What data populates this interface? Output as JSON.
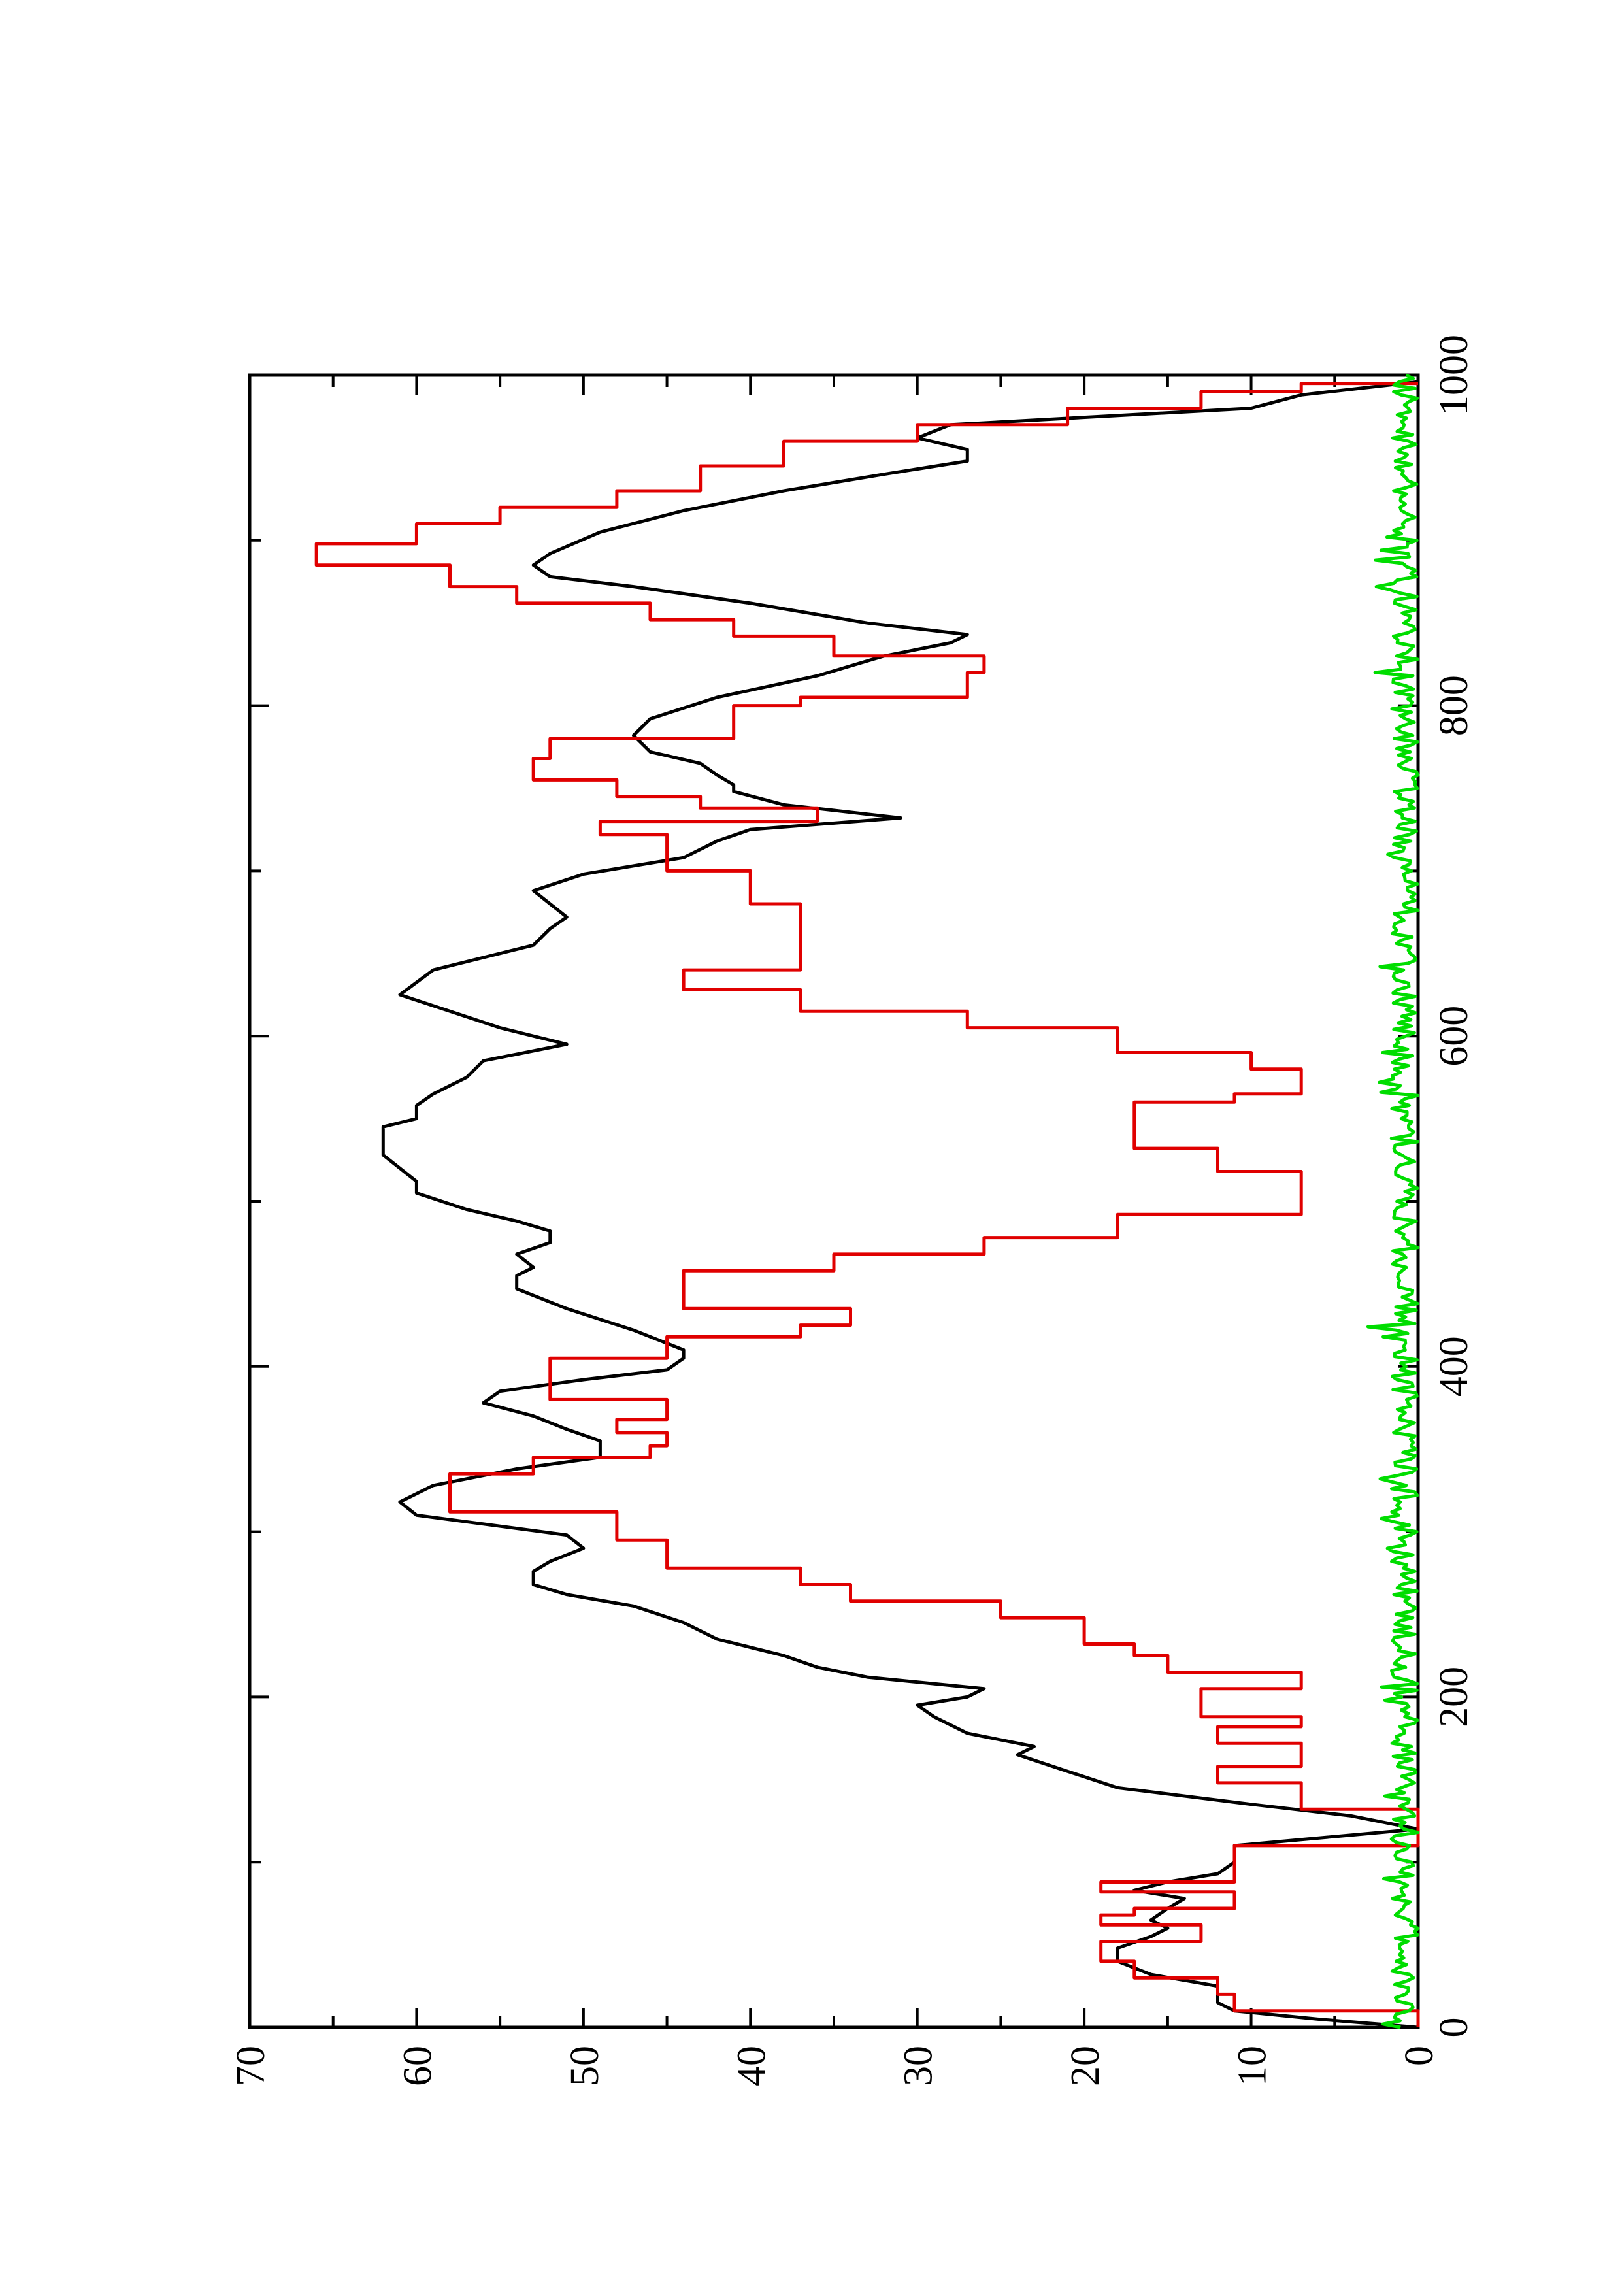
{
  "chart_data": {
    "type": "line",
    "orientation": "rotated-90-ccw",
    "title": "",
    "xlabel": "",
    "ylabel": "",
    "xlim": [
      0,
      1000
    ],
    "ylim": [
      0,
      70
    ],
    "x_ticks": [
      0,
      200,
      400,
      600,
      800,
      1000
    ],
    "x_tick_labels": [
      "0",
      "200",
      "400",
      "600",
      "800",
      "1000"
    ],
    "y_ticks": [
      0,
      10,
      20,
      30,
      40,
      50,
      60,
      70
    ],
    "y_tick_labels": [
      "0",
      "10",
      "20",
      "30",
      "40",
      "50",
      "60",
      "70"
    ],
    "grid": false,
    "legend": "none",
    "series": [
      {
        "color": "#000000",
        "style": "smooth",
        "points": [
          [
            0,
            0
          ],
          [
            5,
            6
          ],
          [
            10,
            11
          ],
          [
            15,
            12
          ],
          [
            25,
            12
          ],
          [
            32,
            16
          ],
          [
            40,
            18
          ],
          [
            48,
            18
          ],
          [
            55,
            16
          ],
          [
            60,
            15
          ],
          [
            65,
            16
          ],
          [
            72,
            15
          ],
          [
            78,
            14
          ],
          [
            83,
            17
          ],
          [
            88,
            15
          ],
          [
            93,
            12
          ],
          [
            100,
            11
          ],
          [
            110,
            11
          ],
          [
            120,
            0
          ],
          [
            128,
            4
          ],
          [
            135,
            10
          ],
          [
            145,
            18
          ],
          [
            155,
            21
          ],
          [
            165,
            24
          ],
          [
            170,
            23
          ],
          [
            178,
            27
          ],
          [
            188,
            29
          ],
          [
            195,
            30
          ],
          [
            200,
            27
          ],
          [
            205,
            26
          ],
          [
            212,
            33
          ],
          [
            218,
            36
          ],
          [
            225,
            38
          ],
          [
            235,
            42
          ],
          [
            245,
            44
          ],
          [
            255,
            47
          ],
          [
            262,
            51
          ],
          [
            268,
            53
          ],
          [
            276,
            53
          ],
          [
            282,
            52
          ],
          [
            290,
            50
          ],
          [
            298,
            51
          ],
          [
            310,
            60
          ],
          [
            318,
            61
          ],
          [
            328,
            59
          ],
          [
            338,
            54
          ],
          [
            345,
            49
          ],
          [
            355,
            49
          ],
          [
            362,
            51
          ],
          [
            370,
            53
          ],
          [
            378,
            56
          ],
          [
            385,
            55
          ],
          [
            392,
            50
          ],
          [
            398,
            45
          ],
          [
            405,
            44
          ],
          [
            410,
            44
          ],
          [
            422,
            47
          ],
          [
            435,
            51
          ],
          [
            447,
            54
          ],
          [
            455,
            54
          ],
          [
            460,
            53
          ],
          [
            468,
            54
          ],
          [
            475,
            52
          ],
          [
            482,
            52
          ],
          [
            488,
            54
          ],
          [
            495,
            57
          ],
          [
            505,
            60
          ],
          [
            512,
            60
          ],
          [
            520,
            61
          ],
          [
            528,
            62
          ],
          [
            535,
            62
          ],
          [
            545,
            62
          ],
          [
            550,
            60
          ],
          [
            558,
            60
          ],
          [
            565,
            59
          ],
          [
            575,
            57
          ],
          [
            585,
            56
          ],
          [
            595,
            51
          ],
          [
            605,
            55
          ],
          [
            615,
            58
          ],
          [
            625,
            61
          ],
          [
            640,
            59
          ],
          [
            655,
            53
          ],
          [
            665,
            52
          ],
          [
            672,
            51
          ],
          [
            680,
            52
          ],
          [
            688,
            53
          ],
          [
            698,
            50
          ],
          [
            708,
            44
          ],
          [
            718,
            42
          ],
          [
            725,
            40
          ],
          [
            732,
            31
          ],
          [
            740,
            38
          ],
          [
            748,
            41
          ],
          [
            752,
            41
          ],
          [
            758,
            42
          ],
          [
            765,
            43
          ],
          [
            772,
            46
          ],
          [
            782,
            47
          ],
          [
            792,
            46
          ],
          [
            805,
            42
          ],
          [
            818,
            36
          ],
          [
            830,
            32
          ],
          [
            838,
            28
          ],
          [
            843,
            27
          ],
          [
            850,
            33
          ],
          [
            862,
            40
          ],
          [
            872,
            47
          ],
          [
            878,
            52
          ],
          [
            885,
            53
          ],
          [
            892,
            52
          ],
          [
            905,
            49
          ],
          [
            918,
            44
          ],
          [
            930,
            38
          ],
          [
            940,
            32
          ],
          [
            948,
            27
          ],
          [
            955,
            27
          ],
          [
            962,
            30
          ],
          [
            970,
            28
          ],
          [
            980,
            10
          ],
          [
            988,
            7
          ],
          [
            996,
            0
          ]
        ]
      },
      {
        "color": "#e00000",
        "style": "step",
        "points": [
          [
            0,
            0
          ],
          [
            10,
            11
          ],
          [
            20,
            12
          ],
          [
            30,
            17
          ],
          [
            40,
            19
          ],
          [
            48,
            19
          ],
          [
            52,
            13
          ],
          [
            58,
            13
          ],
          [
            62,
            19
          ],
          [
            68,
            17
          ],
          [
            72,
            11
          ],
          [
            78,
            11
          ],
          [
            82,
            19
          ],
          [
            88,
            11
          ],
          [
            98,
            11
          ],
          [
            110,
            0
          ],
          [
            122,
            0
          ],
          [
            132,
            7
          ],
          [
            142,
            7
          ],
          [
            148,
            12
          ],
          [
            158,
            7
          ],
          [
            168,
            7
          ],
          [
            172,
            12
          ],
          [
            182,
            7
          ],
          [
            188,
            13
          ],
          [
            198,
            13
          ],
          [
            205,
            7
          ],
          [
            215,
            15
          ],
          [
            225,
            17
          ],
          [
            232,
            20
          ],
          [
            248,
            25
          ],
          [
            258,
            34
          ],
          [
            268,
            37
          ],
          [
            278,
            45
          ],
          [
            288,
            45
          ],
          [
            295,
            48
          ],
          [
            305,
            48
          ],
          [
            312,
            58
          ],
          [
            322,
            58
          ],
          [
            335,
            53
          ],
          [
            345,
            46
          ],
          [
            352,
            45
          ],
          [
            360,
            48
          ],
          [
            368,
            45
          ],
          [
            380,
            52
          ],
          [
            392,
            52
          ],
          [
            405,
            45
          ],
          [
            418,
            37
          ],
          [
            425,
            34
          ],
          [
            435,
            44
          ],
          [
            445,
            44
          ],
          [
            458,
            35
          ],
          [
            468,
            26
          ],
          [
            478,
            18
          ],
          [
            492,
            7
          ],
          [
            502,
            7
          ],
          [
            518,
            12
          ],
          [
            532,
            17
          ],
          [
            548,
            17
          ],
          [
            560,
            11
          ],
          [
            565,
            7
          ],
          [
            570,
            7
          ],
          [
            580,
            10
          ],
          [
            590,
            18
          ],
          [
            605,
            27
          ],
          [
            615,
            37
          ],
          [
            628,
            44
          ],
          [
            640,
            37
          ],
          [
            660,
            37
          ],
          [
            672,
            37
          ],
          [
            680,
            40
          ],
          [
            692,
            40
          ],
          [
            700,
            45
          ],
          [
            715,
            45
          ],
          [
            722,
            49
          ],
          [
            730,
            36
          ],
          [
            738,
            43
          ],
          [
            745,
            48
          ],
          [
            755,
            53
          ],
          [
            768,
            52
          ],
          [
            780,
            41
          ],
          [
            800,
            37
          ],
          [
            805,
            27
          ],
          [
            815,
            27
          ],
          [
            820,
            26
          ],
          [
            830,
            35
          ],
          [
            842,
            41
          ],
          [
            852,
            46
          ],
          [
            862,
            54
          ],
          [
            872,
            58
          ],
          [
            885,
            66
          ],
          [
            898,
            60
          ],
          [
            910,
            55
          ],
          [
            920,
            48
          ],
          [
            930,
            43
          ],
          [
            945,
            38
          ],
          [
            960,
            30
          ],
          [
            970,
            21
          ],
          [
            980,
            13
          ],
          [
            990,
            7
          ],
          [
            995,
            0
          ]
        ]
      },
      {
        "color": "#00dd00",
        "style": "noise",
        "amplitude_max": 3
      }
    ]
  }
}
